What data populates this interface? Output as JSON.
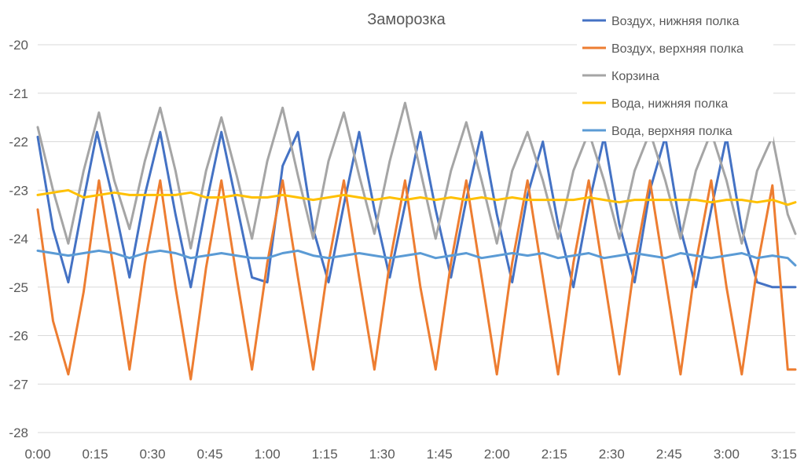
{
  "chart_data": {
    "type": "line",
    "title": "Заморозка",
    "xlabel": "",
    "ylabel": "",
    "xlim": [
      0,
      198
    ],
    "ylim": [
      -28,
      -20
    ],
    "x_ticks": [
      0,
      15,
      30,
      45,
      60,
      75,
      90,
      105,
      120,
      135,
      150,
      165,
      180,
      195
    ],
    "x_tick_labels": [
      "0:00",
      "0:15",
      "0:30",
      "0:45",
      "1:00",
      "1:15",
      "1:30",
      "1:45",
      "2:00",
      "2:15",
      "2:30",
      "2:45",
      "3:00",
      "3:15"
    ],
    "y_ticks": [
      -28,
      -27,
      -26,
      -25,
      -24,
      -23,
      -22,
      -21,
      -20
    ],
    "y_tick_labels": [
      "-28",
      "-27",
      "-26",
      "-25",
      "-24",
      "-23",
      "-22",
      "-21",
      "-20"
    ],
    "grid": true,
    "legend_position": "top-right",
    "series": [
      {
        "name": "Воздух, нижняя полка",
        "color": "#4472C4",
        "x": [
          0,
          4,
          8,
          12,
          15.5,
          20,
          24,
          28,
          32,
          36,
          40,
          44,
          48,
          52,
          56,
          60,
          64,
          68,
          72,
          76,
          80,
          84,
          88,
          92,
          96,
          100,
          104,
          108,
          112,
          116,
          120,
          124,
          128,
          132,
          136,
          140,
          144,
          148,
          152,
          156,
          160,
          164,
          168,
          172,
          176,
          180,
          184,
          188,
          192,
          196,
          198
        ],
        "y": [
          -21.9,
          -23.8,
          -24.9,
          -23.2,
          -21.8,
          -23.3,
          -24.8,
          -23.1,
          -21.8,
          -23.5,
          -25.0,
          -23.3,
          -21.8,
          -23.3,
          -24.8,
          -24.9,
          -22.5,
          -21.8,
          -23.8,
          -24.9,
          -23.3,
          -21.8,
          -23.4,
          -24.8,
          -23.3,
          -21.8,
          -23.4,
          -24.8,
          -23.2,
          -21.8,
          -23.5,
          -24.9,
          -23.1,
          -22.0,
          -23.7,
          -25.0,
          -23.3,
          -21.9,
          -23.7,
          -24.9,
          -23.0,
          -21.9,
          -23.8,
          -25.0,
          -23.4,
          -21.9,
          -23.8,
          -24.9,
          -25.0,
          -25.0,
          -25.0
        ]
      },
      {
        "name": "Воздух, верхняя полка",
        "color": "#ED7D31",
        "x": [
          0,
          4,
          8,
          12,
          16,
          20,
          24,
          28,
          32,
          36,
          40,
          44,
          48,
          52,
          56,
          60,
          64,
          68,
          72,
          76,
          80,
          84,
          88,
          92,
          96,
          100,
          104,
          108,
          112,
          116,
          120,
          124,
          128,
          132,
          136,
          140,
          144,
          148,
          152,
          156,
          160,
          164,
          168,
          172,
          176,
          180,
          184,
          188,
          192,
          196,
          198
        ],
        "y": [
          -23.4,
          -25.7,
          -26.8,
          -25.1,
          -22.8,
          -24.7,
          -26.7,
          -24.5,
          -22.8,
          -25.0,
          -26.9,
          -24.6,
          -22.8,
          -24.8,
          -26.7,
          -24.5,
          -22.8,
          -24.8,
          -26.7,
          -24.5,
          -22.8,
          -24.8,
          -26.7,
          -24.5,
          -22.8,
          -25.0,
          -26.7,
          -24.5,
          -22.8,
          -24.8,
          -26.8,
          -24.5,
          -22.8,
          -24.8,
          -26.8,
          -24.5,
          -22.8,
          -24.8,
          -26.8,
          -24.5,
          -22.8,
          -24.8,
          -26.8,
          -24.5,
          -22.8,
          -25.0,
          -26.8,
          -24.6,
          -22.9,
          -26.7,
          -26.7
        ]
      },
      {
        "name": "Корзина",
        "color": "#A5A5A5",
        "x": [
          0,
          4,
          8,
          12,
          16,
          20,
          24,
          28,
          32,
          36,
          40,
          44,
          48,
          52,
          56,
          60,
          64,
          68,
          72,
          76,
          80,
          84,
          88,
          92,
          96,
          100,
          104,
          108,
          112,
          116,
          120,
          124,
          128,
          132,
          136,
          140,
          144,
          148,
          152,
          156,
          160,
          164,
          168,
          172,
          176,
          180,
          184,
          188,
          192,
          196,
          198
        ],
        "y": [
          -21.7,
          -23.0,
          -24.1,
          -22.6,
          -21.4,
          -22.8,
          -23.8,
          -22.4,
          -21.3,
          -22.6,
          -24.2,
          -22.6,
          -21.5,
          -22.7,
          -24.0,
          -22.4,
          -21.3,
          -22.7,
          -24.0,
          -22.4,
          -21.4,
          -22.7,
          -23.9,
          -22.4,
          -21.2,
          -22.6,
          -24.0,
          -22.6,
          -21.6,
          -22.8,
          -24.1,
          -22.6,
          -21.8,
          -22.8,
          -24.0,
          -22.6,
          -21.8,
          -22.8,
          -24.0,
          -22.6,
          -21.8,
          -22.8,
          -24.0,
          -22.6,
          -21.8,
          -22.8,
          -24.1,
          -22.6,
          -21.9,
          -23.5,
          -23.9
        ]
      },
      {
        "name": "Вода, нижняя полка",
        "color": "#FFC000",
        "x": [
          0,
          4,
          8,
          12,
          16,
          20,
          24,
          28,
          32,
          36,
          40,
          44,
          48,
          52,
          56,
          60,
          64,
          68,
          72,
          76,
          80,
          84,
          88,
          92,
          96,
          100,
          104,
          108,
          112,
          116,
          120,
          124,
          128,
          132,
          136,
          140,
          144,
          148,
          152,
          156,
          160,
          164,
          168,
          172,
          176,
          180,
          184,
          188,
          192,
          196,
          198
        ],
        "y": [
          -23.1,
          -23.05,
          -23.0,
          -23.15,
          -23.1,
          -23.05,
          -23.1,
          -23.1,
          -23.1,
          -23.1,
          -23.05,
          -23.15,
          -23.15,
          -23.1,
          -23.15,
          -23.15,
          -23.1,
          -23.15,
          -23.2,
          -23.15,
          -23.1,
          -23.15,
          -23.2,
          -23.15,
          -23.2,
          -23.15,
          -23.2,
          -23.15,
          -23.2,
          -23.15,
          -23.2,
          -23.15,
          -23.2,
          -23.2,
          -23.2,
          -23.2,
          -23.15,
          -23.2,
          -23.25,
          -23.2,
          -23.2,
          -23.2,
          -23.2,
          -23.2,
          -23.25,
          -23.2,
          -23.2,
          -23.25,
          -23.2,
          -23.3,
          -23.25
        ]
      },
      {
        "name": "Вода, верхняя полка",
        "color": "#5B9BD5",
        "x": [
          0,
          4,
          8,
          12,
          16,
          20,
          24,
          28,
          32,
          36,
          40,
          44,
          48,
          52,
          56,
          60,
          64,
          68,
          72,
          76,
          80,
          84,
          88,
          92,
          96,
          100,
          104,
          108,
          112,
          116,
          120,
          124,
          128,
          132,
          136,
          140,
          144,
          148,
          152,
          156,
          160,
          164,
          168,
          172,
          176,
          180,
          184,
          188,
          192,
          196,
          198
        ],
        "y": [
          -24.25,
          -24.3,
          -24.35,
          -24.3,
          -24.25,
          -24.3,
          -24.4,
          -24.3,
          -24.25,
          -24.3,
          -24.4,
          -24.35,
          -24.3,
          -24.35,
          -24.4,
          -24.4,
          -24.3,
          -24.25,
          -24.35,
          -24.4,
          -24.35,
          -24.3,
          -24.35,
          -24.4,
          -24.35,
          -24.3,
          -24.4,
          -24.35,
          -24.3,
          -24.4,
          -24.35,
          -24.3,
          -24.35,
          -24.3,
          -24.4,
          -24.35,
          -24.3,
          -24.4,
          -24.35,
          -24.3,
          -24.35,
          -24.4,
          -24.3,
          -24.35,
          -24.4,
          -24.35,
          -24.3,
          -24.4,
          -24.35,
          -24.4,
          -24.55
        ]
      }
    ]
  }
}
